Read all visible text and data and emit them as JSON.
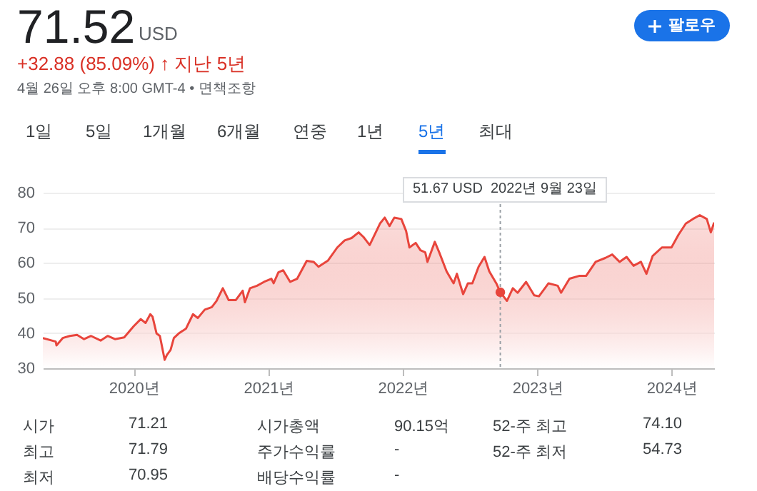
{
  "chart_data": {
    "type": "area",
    "title": "71.52",
    "subtitle": "+32.88 (85.09%) ↑ 지난 5년",
    "x": [
      "2019-04-29",
      "2019-06-03",
      "2019-06-05",
      "2019-06-22",
      "2019-07-11",
      "2019-07-31",
      "2019-08-19",
      "2019-09-07",
      "2019-10-03",
      "2019-10-22",
      "2019-11-11",
      "2019-12-06",
      "2020-01-01",
      "2020-01-20",
      "2020-02-02",
      "2020-02-15",
      "2020-02-21",
      "2020-03-03",
      "2020-03-12",
      "2020-03-25",
      "2020-03-31",
      "2020-04-10",
      "2020-04-19",
      "2020-05-02",
      "2020-05-22",
      "2020-06-10",
      "2020-06-23",
      "2020-07-12",
      "2020-07-31",
      "2020-08-13",
      "2020-08-30",
      "2020-09-15",
      "2020-10-04",
      "2020-10-23",
      "2020-10-29",
      "2020-11-12",
      "2020-12-01",
      "2020-12-20",
      "2021-01-09",
      "2021-01-15",
      "2021-01-28",
      "2021-02-10",
      "2021-03-01",
      "2021-03-20",
      "2021-04-15",
      "2021-05-04",
      "2021-05-17",
      "2021-06-12",
      "2021-07-07",
      "2021-07-27",
      "2021-08-15",
      "2021-09-03",
      "2021-09-16",
      "2021-10-03",
      "2021-10-31",
      "2021-11-13",
      "2021-11-26",
      "2021-12-03",
      "2021-12-09",
      "2021-12-28",
      "2022-01-10",
      "2022-01-19",
      "2022-02-05",
      "2022-02-18",
      "2022-03-03",
      "2022-03-09",
      "2022-03-29",
      "2022-04-10",
      "2022-04-30",
      "2022-05-19",
      "2022-05-28",
      "2022-06-14",
      "2022-06-27",
      "2022-07-09",
      "2022-07-26",
      "2022-08-11",
      "2022-08-24",
      "2022-09-12",
      "2022-09-23",
      "2022-10-11",
      "2022-10-27",
      "2022-11-09",
      "2022-12-02",
      "2022-12-24",
      "2023-01-06",
      "2023-02-01",
      "2023-02-26",
      "2023-03-07",
      "2023-03-30",
      "2023-04-25",
      "2023-05-14",
      "2023-06-09",
      "2023-07-05",
      "2023-07-24",
      "2023-08-13",
      "2023-09-01",
      "2023-09-20",
      "2023-10-10",
      "2023-10-25",
      "2023-11-11",
      "2023-12-06",
      "2024-01-01",
      "2024-01-20",
      "2024-02-09",
      "2024-02-28",
      "2024-03-18",
      "2024-04-06",
      "2024-04-17",
      "2024-04-26"
    ],
    "series": [
      {
        "color": "#e8453c",
        "values": [
          38.6,
          37.6,
          36.5,
          38.6,
          39.2,
          39.5,
          38.3,
          39.2,
          37.9,
          39.2,
          38.3,
          38.8,
          42.0,
          44.0,
          42.9,
          45.4,
          44.7,
          39.9,
          39.2,
          32.4,
          33.8,
          35.2,
          38.6,
          39.9,
          41.3,
          45.4,
          44.3,
          46.7,
          47.4,
          49.2,
          52.8,
          49.4,
          49.4,
          52.1,
          48.8,
          52.8,
          53.5,
          54.6,
          55.5,
          54.2,
          57.3,
          57.9,
          54.6,
          55.5,
          60.6,
          60.3,
          58.9,
          60.7,
          64.4,
          66.4,
          67.1,
          68.7,
          67.4,
          65.1,
          71.2,
          72.9,
          70.5,
          71.8,
          72.9,
          72.5,
          69.1,
          64.4,
          65.7,
          63.6,
          63.0,
          60.3,
          66.0,
          63.0,
          57.6,
          54.2,
          56.9,
          51.1,
          54.2,
          54.2,
          58.9,
          61.7,
          57.6,
          54.2,
          51.67,
          49.2,
          52.8,
          51.5,
          54.6,
          50.8,
          50.5,
          54.2,
          53.5,
          51.5,
          55.5,
          56.3,
          56.3,
          60.3,
          61.4,
          62.4,
          60.3,
          61.7,
          59.2,
          60.3,
          56.9,
          62.0,
          64.4,
          64.4,
          68.0,
          71.2,
          72.5,
          73.6,
          72.5,
          68.7,
          71.52
        ]
      }
    ],
    "xlim": [
      "2019-04-29",
      "2024-04-26"
    ],
    "xticks": [
      {
        "value": "2020-01-01",
        "label": "2020년"
      },
      {
        "value": "2021-01-01",
        "label": "2021년"
      },
      {
        "value": "2022-01-01",
        "label": "2022년"
      },
      {
        "value": "2023-01-01",
        "label": "2023년"
      },
      {
        "value": "2024-01-01",
        "label": "2024년"
      }
    ],
    "ylim": [
      30,
      80
    ],
    "yticks": [
      30,
      40,
      50,
      60,
      70,
      80
    ],
    "grid": "y",
    "ref_lines": [
      {
        "axis": "x",
        "value": "2022-09-23",
        "color": "#9aa0a6",
        "line_style": "dotted"
      }
    ],
    "annotations": [
      "USD",
      "4월 26일 오후 8:00 GMT-4 • 면책조항",
      "1일",
      "5일",
      "1개월",
      "6개월",
      "연중",
      "1년",
      "5년",
      "최대",
      "팔로우",
      "시가",
      "71.21",
      "시가총액",
      "90.15억",
      "52-주 최고",
      "74.10",
      "최고",
      "71.79",
      "주가수익률",
      "-",
      "52-주 최저",
      "54.73",
      "최저",
      "70.95",
      "배당수익률",
      "-",
      "51.67 USD  2022년 9월 23일"
    ]
  }
}
